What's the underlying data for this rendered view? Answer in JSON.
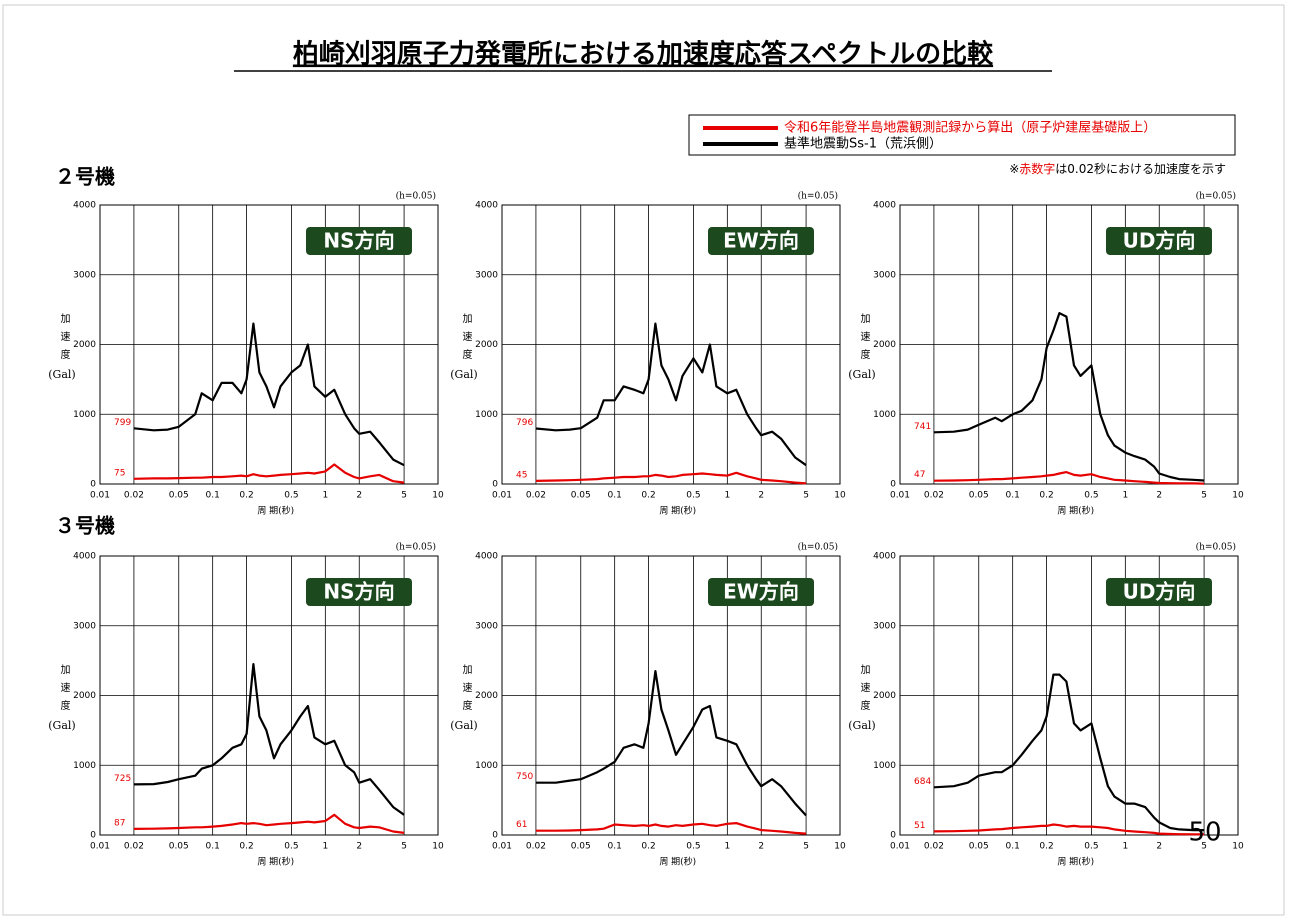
{
  "title": "柏崎刈羽原子力発電所における加速度応答スペクトルの比較",
  "legend": [
    {
      "name": "令和6年能登半島地震観測記録から算出（原子炉建屋基礎版上）",
      "color": "#e60000"
    },
    {
      "name": "基準地震動Ss-1（荒浜側）",
      "color": "#000000"
    }
  ],
  "note": {
    "prefix": "※",
    "highlight": "赤数字",
    "rest": "は0.02秒における加速度を示す"
  },
  "sections": [
    "２号機",
    "３号機"
  ],
  "page_number": "50",
  "chart_data": [
    {
      "type": "line",
      "label": "NS方向",
      "damping": "(h=0.05)",
      "y_label": "加速度",
      "y_unit": "(Gal)",
      "x_label": "周 期(秒)",
      "log_x": true,
      "grid": true,
      "xlim": [
        0.01,
        10
      ],
      "xticks": [
        0.01,
        0.02,
        0.05,
        0.1,
        0.2,
        0.5,
        1,
        2,
        5,
        10
      ],
      "ylim": [
        0,
        4000
      ],
      "yticks": [
        0,
        1000,
        2000,
        3000,
        4000
      ],
      "x": [
        0.02,
        0.03,
        0.04,
        0.05,
        0.07,
        0.08,
        0.1,
        0.12,
        0.15,
        0.18,
        0.2,
        0.23,
        0.26,
        0.3,
        0.35,
        0.4,
        0.5,
        0.6,
        0.7,
        0.8,
        1,
        1.2,
        1.5,
        1.8,
        2,
        2.5,
        3,
        4,
        5
      ],
      "series": [
        {
          "color": "#e60000",
          "values": [
            75,
            80,
            80,
            85,
            90,
            90,
            100,
            100,
            110,
            120,
            110,
            140,
            120,
            110,
            120,
            130,
            140,
            150,
            160,
            150,
            180,
            280,
            160,
            100,
            80,
            110,
            130,
            40,
            20
          ]
        },
        {
          "color": "#000000",
          "values": [
            799,
            770,
            780,
            820,
            1000,
            1300,
            1200,
            1450,
            1450,
            1300,
            1500,
            2300,
            1600,
            1400,
            1100,
            1400,
            1600,
            1700,
            2000,
            1400,
            1250,
            1350,
            1000,
            800,
            720,
            750,
            600,
            350,
            270
          ]
        }
      ]
    },
    {
      "type": "line",
      "label": "EW方向",
      "damping": "(h=0.05)",
      "y_label": "加速度",
      "y_unit": "(Gal)",
      "x_label": "周 期(秒)",
      "log_x": true,
      "grid": true,
      "xlim": [
        0.01,
        10
      ],
      "xticks": [
        0.01,
        0.02,
        0.05,
        0.1,
        0.2,
        0.5,
        1,
        2,
        5,
        10
      ],
      "ylim": [
        0,
        4000
      ],
      "yticks": [
        0,
        1000,
        2000,
        3000,
        4000
      ],
      "x": [
        0.02,
        0.03,
        0.04,
        0.05,
        0.07,
        0.08,
        0.1,
        0.12,
        0.15,
        0.18,
        0.2,
        0.23,
        0.26,
        0.3,
        0.35,
        0.4,
        0.5,
        0.6,
        0.7,
        0.8,
        1,
        1.2,
        1.5,
        1.8,
        2,
        2.5,
        3,
        4,
        5
      ],
      "series": [
        {
          "color": "#e60000",
          "values": [
            45,
            50,
            55,
            60,
            70,
            80,
            90,
            100,
            100,
            110,
            110,
            130,
            120,
            100,
            110,
            130,
            140,
            150,
            140,
            130,
            120,
            160,
            110,
            80,
            60,
            50,
            40,
            20,
            10
          ]
        },
        {
          "color": "#000000",
          "values": [
            796,
            770,
            780,
            800,
            950,
            1200,
            1200,
            1400,
            1350,
            1300,
            1500,
            2300,
            1700,
            1500,
            1200,
            1550,
            1800,
            1600,
            2000,
            1400,
            1300,
            1350,
            1000,
            800,
            700,
            750,
            650,
            380,
            270
          ]
        }
      ]
    },
    {
      "type": "line",
      "label": "UD方向",
      "damping": "(h=0.05)",
      "y_label": "加速度",
      "y_unit": "(Gal)",
      "x_label": "周 期(秒)",
      "log_x": true,
      "grid": true,
      "xlim": [
        0.01,
        10
      ],
      "xticks": [
        0.01,
        0.02,
        0.05,
        0.1,
        0.2,
        0.5,
        1,
        2,
        5,
        10
      ],
      "ylim": [
        0,
        4000
      ],
      "yticks": [
        0,
        1000,
        2000,
        3000,
        4000
      ],
      "x": [
        0.02,
        0.03,
        0.04,
        0.05,
        0.07,
        0.08,
        0.1,
        0.12,
        0.15,
        0.18,
        0.2,
        0.23,
        0.26,
        0.3,
        0.35,
        0.4,
        0.5,
        0.6,
        0.7,
        0.8,
        1,
        1.2,
        1.5,
        1.8,
        2,
        2.5,
        3,
        4,
        5
      ],
      "series": [
        {
          "color": "#e60000",
          "values": [
            47,
            50,
            55,
            60,
            70,
            70,
            80,
            90,
            100,
            110,
            120,
            130,
            150,
            170,
            130,
            120,
            140,
            100,
            80,
            60,
            50,
            40,
            30,
            20,
            15,
            12,
            10,
            8,
            5
          ]
        },
        {
          "color": "#000000",
          "values": [
            741,
            750,
            780,
            850,
            950,
            900,
            1000,
            1050,
            1200,
            1500,
            1950,
            2200,
            2450,
            2400,
            1700,
            1550,
            1700,
            1000,
            700,
            550,
            450,
            400,
            350,
            250,
            150,
            100,
            70,
            60,
            50
          ]
        }
      ]
    },
    {
      "type": "line",
      "label": "NS方向",
      "damping": "(h=0.05)",
      "y_label": "加速度",
      "y_unit": "(Gal)",
      "x_label": "周 期(秒)",
      "log_x": true,
      "grid": true,
      "xlim": [
        0.01,
        10
      ],
      "xticks": [
        0.01,
        0.02,
        0.05,
        0.1,
        0.2,
        0.5,
        1,
        2,
        5,
        10
      ],
      "ylim": [
        0,
        4000
      ],
      "yticks": [
        0,
        1000,
        2000,
        3000,
        4000
      ],
      "x": [
        0.02,
        0.03,
        0.04,
        0.05,
        0.07,
        0.08,
        0.1,
        0.12,
        0.15,
        0.18,
        0.2,
        0.23,
        0.26,
        0.3,
        0.35,
        0.4,
        0.5,
        0.6,
        0.7,
        0.8,
        1,
        1.2,
        1.5,
        1.8,
        2,
        2.5,
        3,
        4,
        5
      ],
      "series": [
        {
          "color": "#e60000",
          "values": [
            87,
            90,
            95,
            100,
            110,
            110,
            120,
            130,
            150,
            170,
            160,
            170,
            160,
            140,
            150,
            160,
            170,
            180,
            190,
            180,
            200,
            290,
            160,
            110,
            100,
            120,
            110,
            50,
            30
          ]
        },
        {
          "color": "#000000",
          "values": [
            725,
            730,
            760,
            800,
            850,
            950,
            1000,
            1100,
            1250,
            1300,
            1450,
            2450,
            1700,
            1500,
            1100,
            1300,
            1500,
            1700,
            1850,
            1400,
            1300,
            1350,
            1000,
            900,
            750,
            800,
            650,
            400,
            290
          ]
        }
      ]
    },
    {
      "type": "line",
      "label": "EW方向",
      "damping": "(h=0.05)",
      "y_label": "加速度",
      "y_unit": "(Gal)",
      "x_label": "周 期(秒)",
      "log_x": true,
      "grid": true,
      "xlim": [
        0.01,
        10
      ],
      "xticks": [
        0.01,
        0.02,
        0.05,
        0.1,
        0.2,
        0.5,
        1,
        2,
        5,
        10
      ],
      "ylim": [
        0,
        4000
      ],
      "yticks": [
        0,
        1000,
        2000,
        3000,
        4000
      ],
      "x": [
        0.02,
        0.03,
        0.04,
        0.05,
        0.07,
        0.08,
        0.1,
        0.12,
        0.15,
        0.18,
        0.2,
        0.23,
        0.26,
        0.3,
        0.35,
        0.4,
        0.5,
        0.6,
        0.7,
        0.8,
        1,
        1.2,
        1.5,
        1.8,
        2,
        2.5,
        3,
        4,
        5
      ],
      "series": [
        {
          "color": "#e60000",
          "values": [
            61,
            62,
            65,
            70,
            80,
            90,
            150,
            140,
            130,
            140,
            130,
            150,
            130,
            120,
            140,
            130,
            150,
            160,
            140,
            130,
            160,
            170,
            120,
            90,
            70,
            60,
            50,
            30,
            20
          ]
        },
        {
          "color": "#000000",
          "values": [
            750,
            750,
            780,
            800,
            900,
            950,
            1050,
            1250,
            1300,
            1250,
            1600,
            2350,
            1800,
            1500,
            1150,
            1300,
            1550,
            1800,
            1850,
            1400,
            1350,
            1300,
            1000,
            800,
            700,
            800,
            700,
            450,
            280
          ]
        }
      ]
    },
    {
      "type": "line",
      "label": "UD方向",
      "damping": "(h=0.05)",
      "y_label": "加速度",
      "y_unit": "(Gal)",
      "x_label": "周 期(秒)",
      "log_x": true,
      "grid": true,
      "xlim": [
        0.01,
        10
      ],
      "xticks": [
        0.01,
        0.02,
        0.05,
        0.1,
        0.2,
        0.5,
        1,
        2,
        5,
        10
      ],
      "ylim": [
        0,
        4000
      ],
      "yticks": [
        0,
        1000,
        2000,
        3000,
        4000
      ],
      "x": [
        0.02,
        0.03,
        0.04,
        0.05,
        0.07,
        0.08,
        0.1,
        0.12,
        0.15,
        0.18,
        0.2,
        0.23,
        0.26,
        0.3,
        0.35,
        0.4,
        0.5,
        0.6,
        0.7,
        0.8,
        1,
        1.2,
        1.5,
        1.8,
        2,
        2.5,
        3,
        4,
        5
      ],
      "series": [
        {
          "color": "#e60000",
          "values": [
            51,
            55,
            60,
            65,
            80,
            85,
            100,
            110,
            120,
            130,
            130,
            150,
            140,
            120,
            130,
            120,
            120,
            110,
            100,
            80,
            60,
            50,
            40,
            30,
            20,
            15,
            12,
            10,
            8
          ]
        },
        {
          "color": "#000000",
          "values": [
            684,
            700,
            750,
            850,
            900,
            900,
            1000,
            1150,
            1350,
            1500,
            1700,
            2300,
            2300,
            2200,
            1600,
            1500,
            1600,
            1100,
            700,
            550,
            450,
            450,
            400,
            250,
            180,
            100,
            80,
            70,
            70
          ]
        }
      ]
    }
  ]
}
